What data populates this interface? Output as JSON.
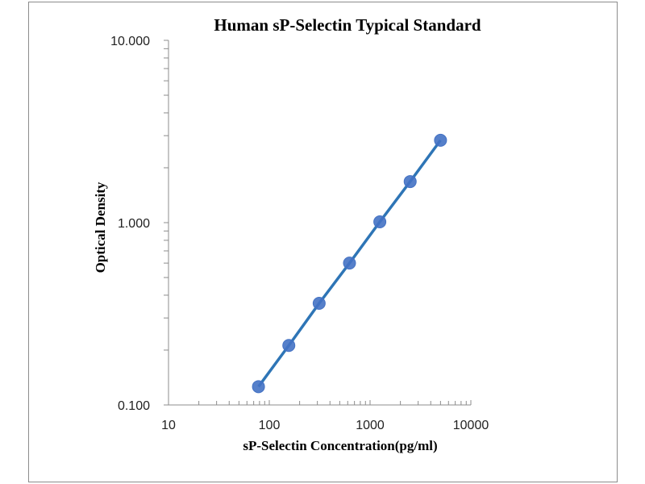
{
  "chart_data": {
    "type": "line",
    "title": "Human sP-Selectin Typical Standard",
    "xlabel": "sP-Selectin Concentration(pg/ml)",
    "ylabel": "Optical Density",
    "xscale": "log",
    "yscale": "log",
    "xlim": [
      10,
      10000
    ],
    "ylim": [
      0.1,
      10
    ],
    "xticks": [
      "10",
      "100",
      "1000",
      "10000"
    ],
    "yticks": [
      "0.100",
      "1.000",
      "10.000"
    ],
    "grid": false,
    "legend": "none",
    "series": [
      {
        "name": "Standard",
        "color": "#2e75b6",
        "marker_color": "#4472c4",
        "x": [
          78.125,
          156.25,
          312.5,
          625,
          1250,
          2500,
          5000
        ],
        "y": [
          0.126,
          0.212,
          0.361,
          0.6,
          1.01,
          1.68,
          2.83
        ]
      }
    ]
  }
}
